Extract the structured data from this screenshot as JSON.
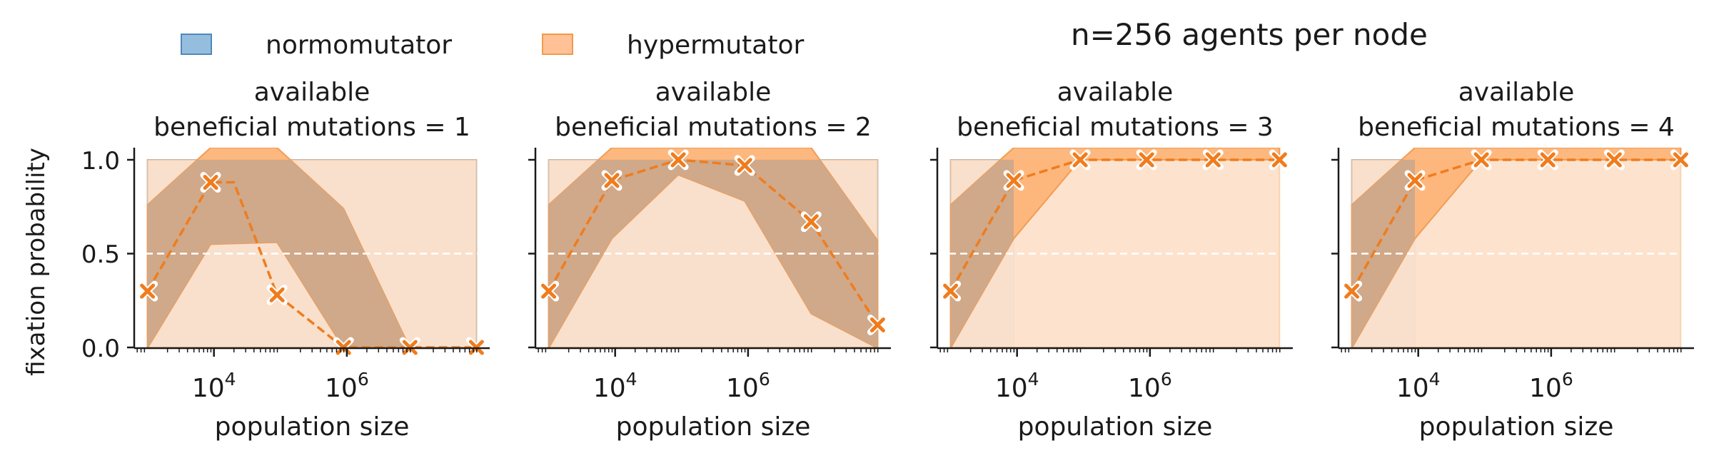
{
  "suptitle": "n=256 agents per node",
  "legend": {
    "placement": "top-left",
    "items": [
      {
        "label": "normomutator",
        "color": "#7aaed6",
        "edge": "#4f88bd"
      },
      {
        "label": "hypermutator",
        "color": "#ffb27a",
        "edge": "#f39a4c"
      }
    ]
  },
  "colors": {
    "normo_fill": "#cfe2f0",
    "normo_edge": "#a9c9e4",
    "hyper_light": "#fde0c9",
    "hyper_mid": "#fdb478",
    "hyper_overlap": "#cfa98a",
    "hyper_edge": "#f29c53",
    "line": "#f07c1d",
    "refline": "#ffffff"
  },
  "chart_data": [
    {
      "type": "line",
      "title_line1": "available",
      "title_line2": "beneficial mutations = 1",
      "xlabel": "population size",
      "ylabel": "fixation probability",
      "xscale": "log",
      "xlim_log10": [
        2.8,
        8.15
      ],
      "ylim": [
        -0.02,
        1.02
      ],
      "yticks": [
        "0.0",
        "0.5",
        "1.0"
      ],
      "xticks": [
        {
          "exp": 4,
          "base": "10",
          "sup": "4"
        },
        {
          "exp": 6,
          "base": "10",
          "sup": "6"
        }
      ],
      "reference_line": 0.5,
      "normomutator_band": {
        "x_log10": [
          3.0,
          7.95
        ],
        "y": [
          0,
          1
        ]
      },
      "series": [
        {
          "name": "hypermutator",
          "x_log10": [
            3.0,
            3.95,
            4.3,
            4.95,
            5.95,
            6.95,
            7.95
          ],
          "values": [
            0.3,
            0.88,
            0.88,
            0.28,
            0.0,
            0.0,
            0.0
          ],
          "marker_index": [
            0,
            1,
            3,
            4,
            5,
            6
          ],
          "ci95_x_log10": [
            3.0,
            3.95,
            4.95,
            5.95,
            6.95,
            7.95
          ],
          "ci95_lower": [
            -0.1,
            0.55,
            0.56,
            -0.1,
            -0.1,
            -0.1
          ],
          "ci95_upper": [
            0.76,
            1.1,
            1.1,
            0.74,
            -0.1,
            -0.1
          ]
        }
      ]
    },
    {
      "type": "line",
      "title_line1": "available",
      "title_line2": "beneficial mutations = 2",
      "xlabel": "population size",
      "xscale": "log",
      "xlim_log10": [
        2.8,
        8.15
      ],
      "ylim": [
        -0.02,
        1.02
      ],
      "xticks": [
        {
          "exp": 4,
          "base": "10",
          "sup": "4"
        },
        {
          "exp": 6,
          "base": "10",
          "sup": "6"
        }
      ],
      "reference_line": 0.5,
      "normomutator_band": {
        "x_log10": [
          3.0,
          7.95
        ],
        "y": [
          0,
          1
        ]
      },
      "series": [
        {
          "name": "hypermutator",
          "x_log10": [
            3.0,
            3.95,
            4.95,
            5.95,
            6.95,
            7.95
          ],
          "values": [
            0.3,
            0.89,
            1.0,
            0.97,
            0.67,
            0.12
          ],
          "marker_index": [
            0,
            1,
            2,
            3,
            4,
            5
          ],
          "ci95_lower": [
            -0.1,
            0.58,
            0.92,
            0.78,
            0.18,
            -0.1
          ],
          "ci95_upper": [
            0.76,
            1.1,
            1.1,
            1.1,
            1.1,
            0.57
          ]
        }
      ]
    },
    {
      "type": "line",
      "title_line1": "available",
      "title_line2": "beneficial mutations = 3",
      "xlabel": "population size",
      "xscale": "log",
      "xlim_log10": [
        2.8,
        8.15
      ],
      "ylim": [
        -0.02,
        1.02
      ],
      "xticks": [
        {
          "exp": 4,
          "base": "10",
          "sup": "4"
        },
        {
          "exp": 6,
          "base": "10",
          "sup": "6"
        }
      ],
      "reference_line": 0.5,
      "normomutator_band": {
        "x_log10": [
          3.0,
          3.95
        ],
        "y": [
          0,
          1
        ]
      },
      "series": [
        {
          "name": "hypermutator",
          "x_log10": [
            3.0,
            3.95,
            4.95,
            5.95,
            6.95,
            7.95
          ],
          "values": [
            0.3,
            0.89,
            1.0,
            1.0,
            1.0,
            1.0
          ],
          "marker_index": [
            0,
            1,
            2,
            3,
            4,
            5
          ],
          "ci95_lower": [
            -0.1,
            0.58,
            1.0,
            1.0,
            1.0,
            1.0
          ],
          "ci95_upper": [
            0.76,
            1.1,
            1.1,
            1.1,
            1.1,
            1.1
          ]
        }
      ]
    },
    {
      "type": "line",
      "title_line1": "available",
      "title_line2": "beneficial mutations = 4",
      "xlabel": "population size",
      "xscale": "log",
      "xlim_log10": [
        2.8,
        8.15
      ],
      "ylim": [
        -0.02,
        1.02
      ],
      "xticks": [
        {
          "exp": 4,
          "base": "10",
          "sup": "4"
        },
        {
          "exp": 6,
          "base": "10",
          "sup": "6"
        }
      ],
      "reference_line": 0.5,
      "normomutator_band": {
        "x_log10": [
          3.0,
          3.95
        ],
        "y": [
          0,
          1
        ]
      },
      "series": [
        {
          "name": "hypermutator",
          "x_log10": [
            3.0,
            3.95,
            4.95,
            5.95,
            6.95,
            7.95
          ],
          "values": [
            0.3,
            0.89,
            1.0,
            1.0,
            1.0,
            1.0
          ],
          "marker_index": [
            0,
            1,
            2,
            3,
            4,
            5
          ],
          "ci95_lower": [
            -0.1,
            0.58,
            1.0,
            1.0,
            1.0,
            1.0
          ],
          "ci95_upper": [
            0.76,
            1.1,
            1.1,
            1.1,
            1.1,
            1.1
          ]
        }
      ]
    }
  ]
}
